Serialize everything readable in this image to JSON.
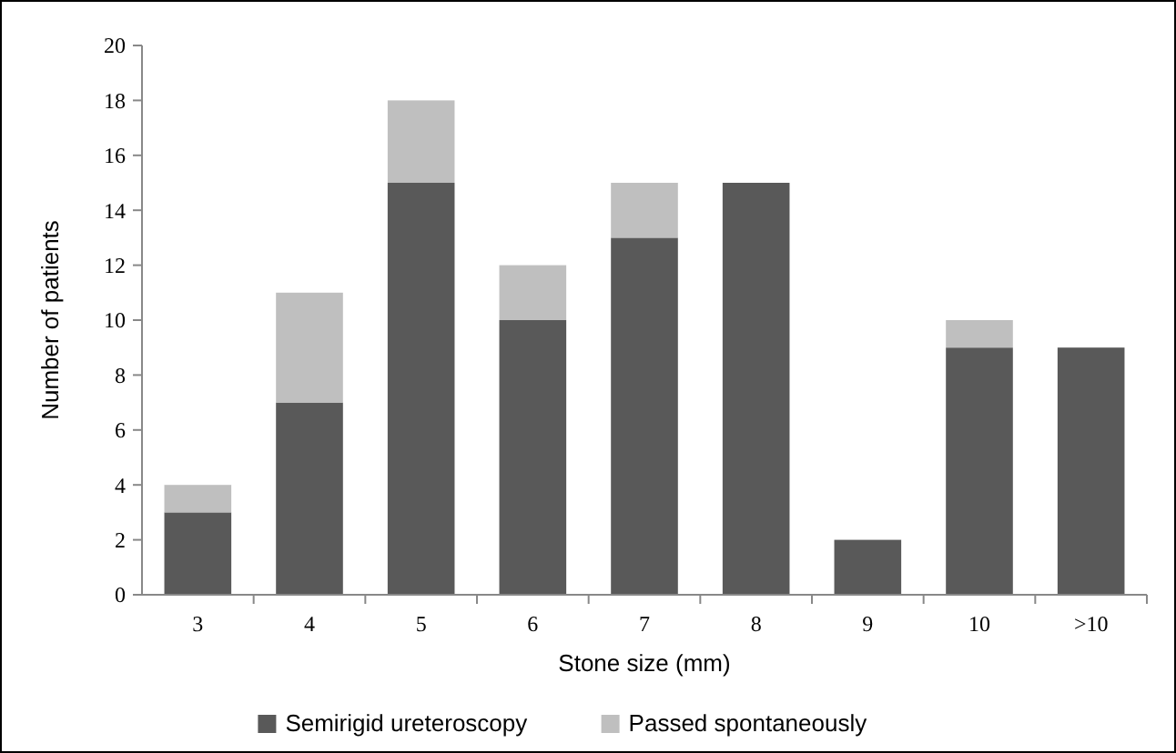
{
  "chart_data": {
    "type": "bar",
    "stacked": true,
    "xlabel": "Stone size (mm)",
    "ylabel": "Number of patients",
    "categories": [
      "3",
      "4",
      "5",
      "6",
      "7",
      "8",
      "9",
      "10",
      ">10"
    ],
    "series": [
      {
        "name": "Semirigid ureteroscopy",
        "color": "#595959",
        "values": [
          3,
          7,
          15,
          10,
          13,
          15,
          2,
          9,
          9
        ]
      },
      {
        "name": "Passed spontaneously",
        "color": "#bfbfbf",
        "values": [
          1,
          4,
          3,
          2,
          2,
          0,
          0,
          1,
          0
        ]
      }
    ],
    "ylim": [
      0,
      20
    ],
    "yticks": [
      0,
      2,
      4,
      6,
      8,
      10,
      12,
      14,
      16,
      18,
      20
    ],
    "grid": false,
    "legend": "bottom"
  }
}
